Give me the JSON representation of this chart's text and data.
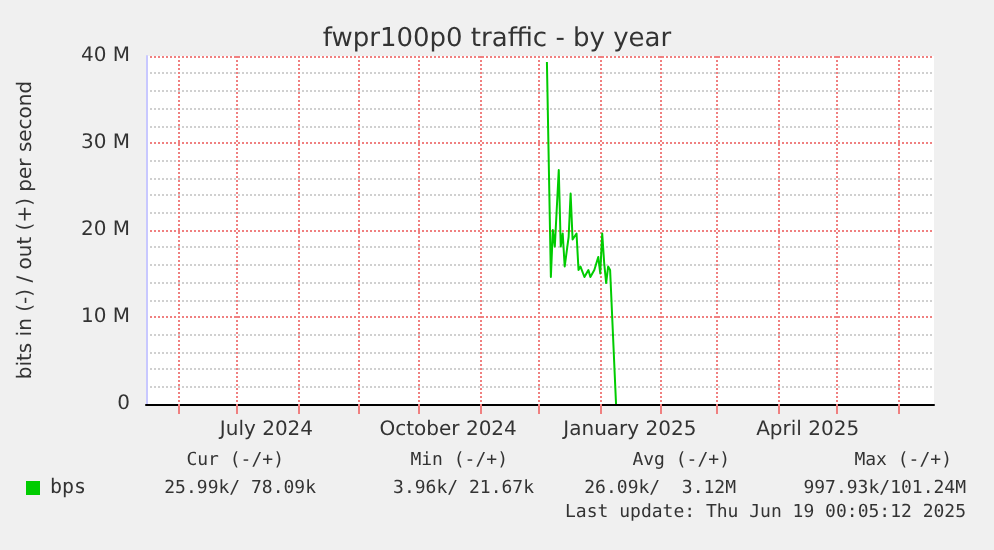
{
  "chart_data": {
    "type": "line",
    "title": "fwpr100p0 traffic - by year",
    "ylabel": "bits in (-) / out (+) per second",
    "xlim": [
      "2024-05-16",
      "2025-06-19"
    ],
    "xticks": [
      {
        "value": "2024-06-01",
        "label": null
      },
      {
        "value": "2024-07-01",
        "label": null
      },
      {
        "value": "2024-07-16",
        "label": "July 2024"
      },
      {
        "value": "2024-08-01",
        "label": null
      },
      {
        "value": "2024-09-01",
        "label": null
      },
      {
        "value": "2024-10-01",
        "label": null
      },
      {
        "value": "2024-10-16",
        "label": "October 2024"
      },
      {
        "value": "2024-11-01",
        "label": null
      },
      {
        "value": "2024-12-01",
        "label": null
      },
      {
        "value": "2025-01-01",
        "label": null
      },
      {
        "value": "2025-01-16",
        "label": "January 2025"
      },
      {
        "value": "2025-02-01",
        "label": null
      },
      {
        "value": "2025-03-01",
        "label": null
      },
      {
        "value": "2025-04-01",
        "label": null
      },
      {
        "value": "2025-04-16",
        "label": "April 2025"
      },
      {
        "value": "2025-05-01",
        "label": null
      },
      {
        "value": "2025-06-01",
        "label": null
      }
    ],
    "ylim": [
      0,
      40000000
    ],
    "yticks": [
      {
        "value": 0,
        "label": "0"
      },
      {
        "value": 10000000,
        "label": "10 M"
      },
      {
        "value": 20000000,
        "label": "20 M"
      },
      {
        "value": 30000000,
        "label": "30 M"
      },
      {
        "value": 40000000,
        "label": "40 M"
      }
    ],
    "grid": true,
    "legend": "bottom left",
    "marker": "none",
    "line_style": "solid",
    "series": [
      {
        "name": "bps",
        "color": "#00cc00",
        "x": [
          "2024-12-05",
          "2024-12-07",
          "2024-12-08",
          "2024-12-09",
          "2024-12-11",
          "2024-12-12",
          "2024-12-13",
          "2024-12-14",
          "2024-12-16",
          "2024-12-17",
          "2024-12-18",
          "2024-12-20",
          "2024-12-21",
          "2024-12-22",
          "2024-12-24",
          "2024-12-26",
          "2024-12-27",
          "2024-12-29",
          "2024-12-31",
          "2025-01-01",
          "2025-01-02",
          "2025-01-03",
          "2025-01-04",
          "2025-01-05",
          "2025-01-06",
          "2025-01-09"
        ],
        "values": [
          39300000,
          14600000,
          20000000,
          18100000,
          26900000,
          18100000,
          19600000,
          15800000,
          19200000,
          24200000,
          18900000,
          19600000,
          15400000,
          15800000,
          14600000,
          15400000,
          14600000,
          15400000,
          16900000,
          15000000,
          19600000,
          16200000,
          13900000,
          15800000,
          15400000,
          0
        ]
      }
    ],
    "annotations": [
      "Cur (-/+)",
      "Min (-/+)",
      "Avg (-/+)",
      "Max (-/+)",
      "25.99k/ 78.09k",
      "3.96k/ 21.67k",
      "26.09k/  3.12M",
      "997.93k/101.24M",
      "Last update: Thu Jun 19 00:05:12 2025"
    ]
  }
}
